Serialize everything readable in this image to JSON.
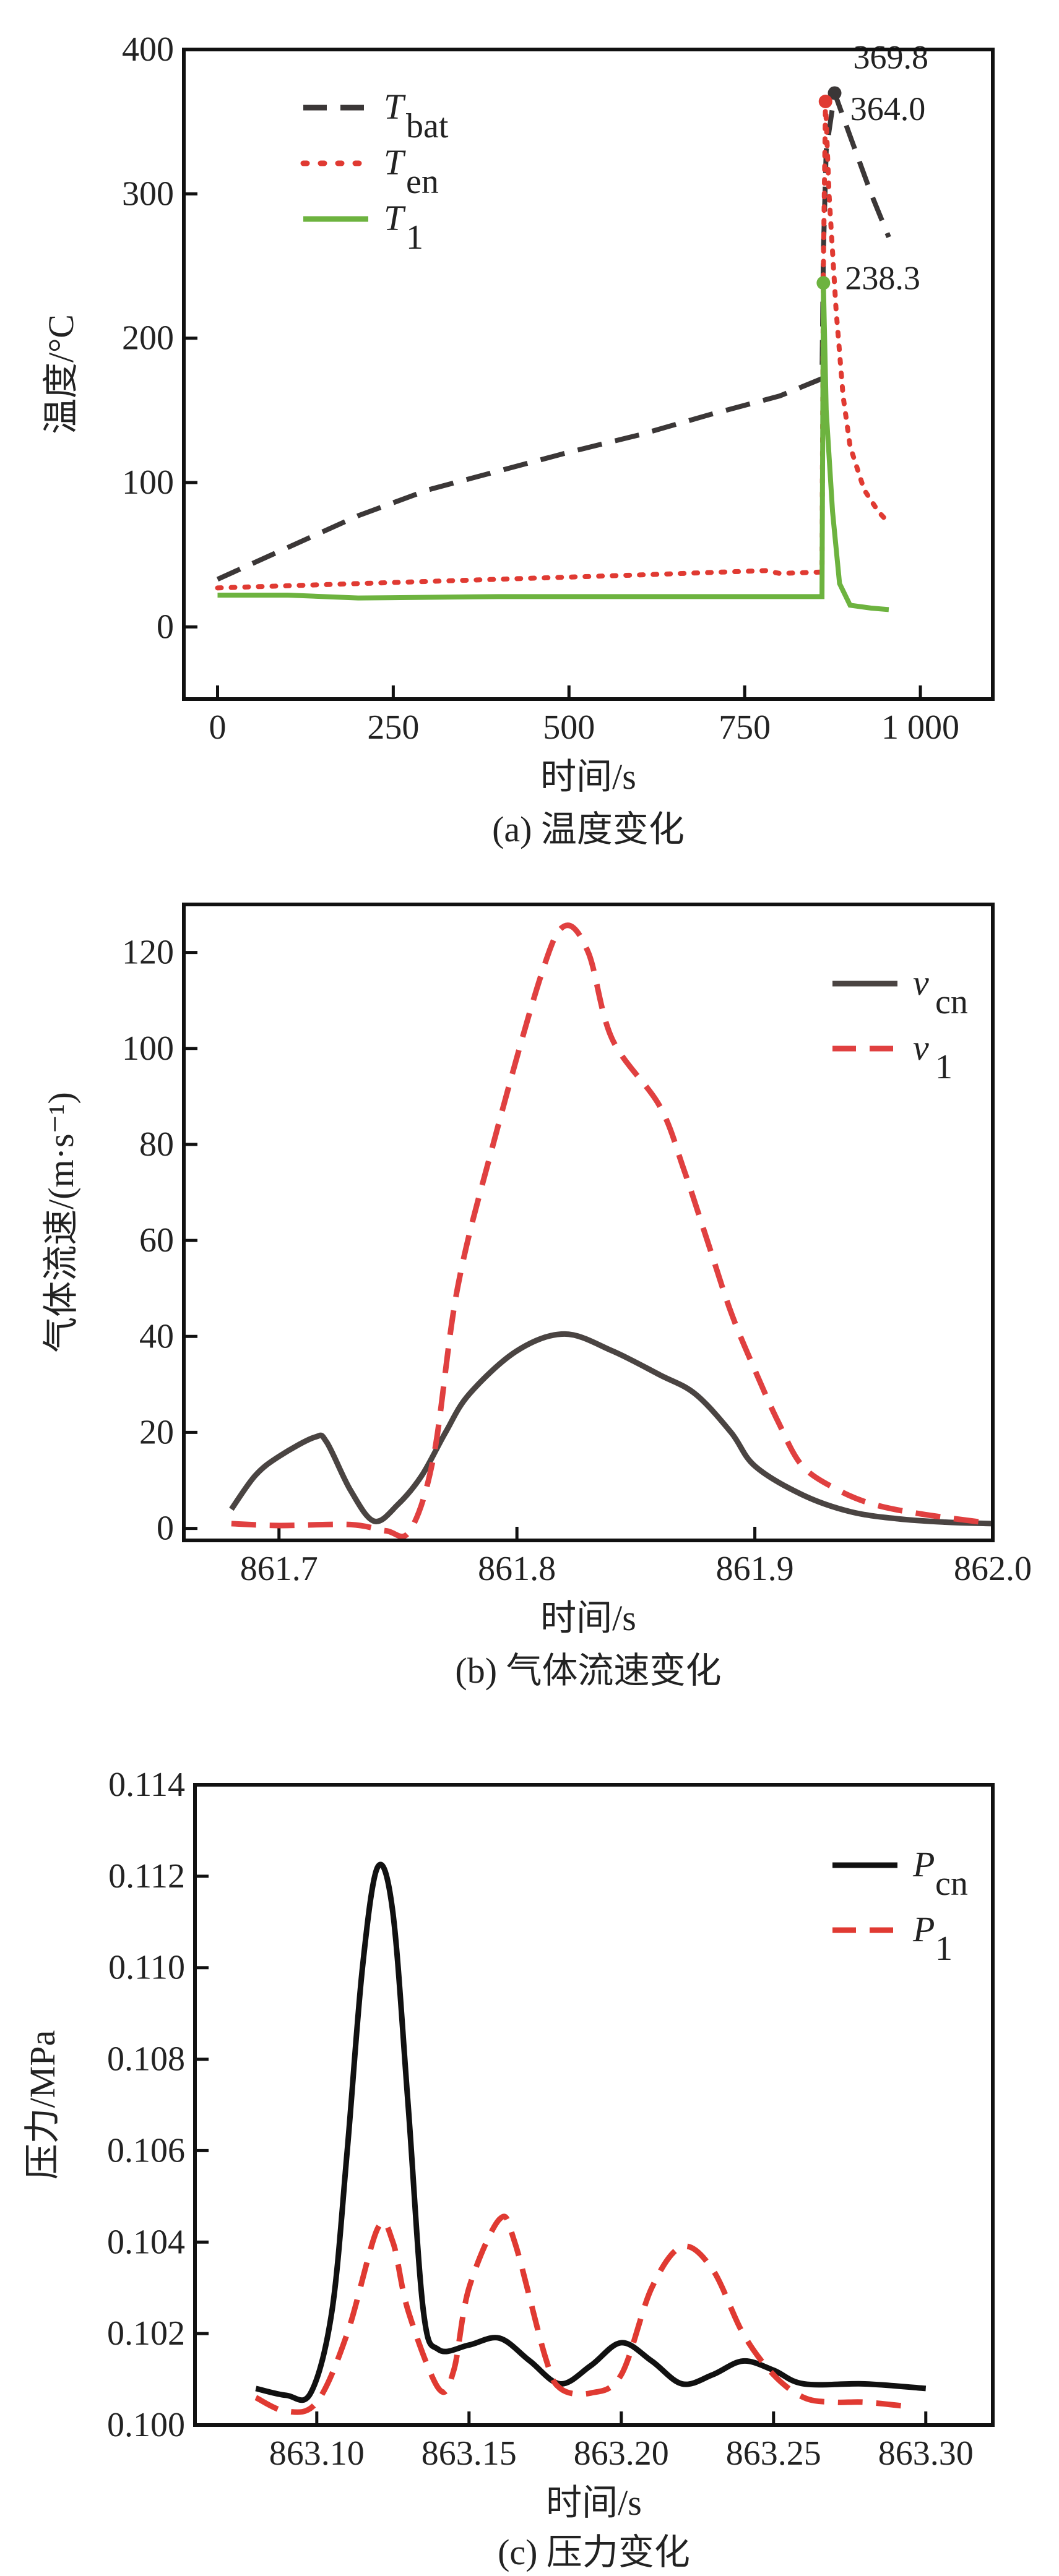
{
  "chart_data": [
    {
      "id": "a",
      "type": "line",
      "caption": "(a) 温度变化",
      "xlabel": "时间/s",
      "ylabel": "温度/°C",
      "xlim": [
        -48,
        1103
      ],
      "ylim": [
        -50,
        400
      ],
      "xticks": [
        0,
        250,
        500,
        750,
        1000
      ],
      "xtick_labels": [
        "0",
        "250",
        "500",
        "750",
        "1 000"
      ],
      "yticks": [
        0,
        100,
        200,
        300,
        400
      ],
      "ytick_labels": [
        "0",
        "100",
        "200",
        "300",
        "400"
      ],
      "legend_position": "top-left",
      "series": [
        {
          "name": "T",
          "sub": "bat",
          "color": "#3b3737",
          "style": "dashed",
          "points": [
            [
              0,
              33
            ],
            [
              100,
              55
            ],
            [
              200,
              77
            ],
            [
              300,
              95
            ],
            [
              400,
              108
            ],
            [
              500,
              121
            ],
            [
              600,
              133
            ],
            [
              700,
              147
            ],
            [
              800,
              160
            ],
            [
              860,
              172
            ],
            [
              862,
              260
            ],
            [
              866,
              330
            ],
            [
              878,
              369.8
            ],
            [
              900,
              340
            ],
            [
              930,
              300
            ],
            [
              955,
              270
            ]
          ]
        },
        {
          "name": "T",
          "sub": "en",
          "color": "#e03a32",
          "style": "dotted",
          "points": [
            [
              0,
              27
            ],
            [
              200,
              30
            ],
            [
              400,
              33
            ],
            [
              600,
              36
            ],
            [
              780,
              39
            ],
            [
              800,
              37
            ],
            [
              860,
              38
            ],
            [
              862,
              250
            ],
            [
              865,
              364
            ],
            [
              870,
              300
            ],
            [
              880,
              220
            ],
            [
              890,
              160
            ],
            [
              900,
              125
            ],
            [
              920,
              95
            ],
            [
              940,
              80
            ],
            [
              955,
              72
            ]
          ]
        },
        {
          "name": "T",
          "sub": "1",
          "color": "#6db33f",
          "style": "solid",
          "points": [
            [
              0,
              22
            ],
            [
              100,
              22
            ],
            [
              200,
              20
            ],
            [
              400,
              21
            ],
            [
              600,
              21
            ],
            [
              860,
              21
            ],
            [
              862,
              238.3
            ],
            [
              866,
              150
            ],
            [
              875,
              80
            ],
            [
              885,
              30
            ],
            [
              900,
              15
            ],
            [
              930,
              13
            ],
            [
              955,
              12
            ]
          ]
        }
      ],
      "annotations": [
        {
          "text": "369.8",
          "x": 878,
          "y": 369.8,
          "color": "#3b3737"
        },
        {
          "text": "364.0",
          "x": 865,
          "y": 364.0,
          "color": "#e03a32"
        },
        {
          "text": "238.3",
          "x": 862,
          "y": 238.3,
          "color": "#6db33f"
        }
      ]
    },
    {
      "id": "b",
      "type": "line",
      "caption": "(b) 气体流速变化",
      "xlabel": "时间/s",
      "ylabel": "气体流速/(m·s⁻¹)",
      "xlim": [
        861.66,
        862.0
      ],
      "ylim": [
        -2.5,
        130
      ],
      "xticks": [
        861.7,
        861.8,
        861.9,
        862.0
      ],
      "xtick_labels": [
        "861.7",
        "861.8",
        "861.9",
        "862.0"
      ],
      "yticks": [
        0,
        20,
        40,
        60,
        80,
        100,
        120
      ],
      "ytick_labels": [
        "0",
        "20",
        "40",
        "60",
        "80",
        "100",
        "120"
      ],
      "legend_position": "top-right",
      "series": [
        {
          "name": "v",
          "sub": "cn",
          "color": "#4a4442",
          "style": "solid",
          "points": [
            [
              861.68,
              4
            ],
            [
              861.69,
              11
            ],
            [
              861.7,
              15
            ],
            [
              861.715,
              19
            ],
            [
              861.72,
              18
            ],
            [
              861.73,
              8
            ],
            [
              861.74,
              1.5
            ],
            [
              861.75,
              5
            ],
            [
              861.76,
              11
            ],
            [
              861.77,
              20
            ],
            [
              861.78,
              28
            ],
            [
              861.8,
              37
            ],
            [
              861.82,
              40.5
            ],
            [
              861.84,
              37
            ],
            [
              861.86,
              32
            ],
            [
              861.875,
              28
            ],
            [
              861.89,
              20
            ],
            [
              861.9,
              13
            ],
            [
              861.92,
              7
            ],
            [
              861.94,
              3.5
            ],
            [
              861.96,
              2
            ],
            [
              861.98,
              1.3
            ],
            [
              862.0,
              1
            ]
          ]
        },
        {
          "name": "v",
          "sub": "1",
          "color": "#e04040",
          "style": "dashed",
          "points": [
            [
              861.68,
              1
            ],
            [
              861.7,
              0.6
            ],
            [
              861.73,
              0.8
            ],
            [
              861.745,
              -0.5
            ],
            [
              861.755,
              -0.5
            ],
            [
              861.765,
              15
            ],
            [
              861.775,
              50
            ],
            [
              861.79,
              80
            ],
            [
              861.81,
              115
            ],
            [
              861.82,
              125.5
            ],
            [
              861.83,
              120
            ],
            [
              861.84,
              102
            ],
            [
              861.86,
              88
            ],
            [
              861.87,
              75
            ],
            [
              861.88,
              60
            ],
            [
              861.89,
              45
            ],
            [
              861.9,
              33
            ],
            [
              861.91,
              22
            ],
            [
              861.92,
              13
            ],
            [
              861.935,
              8
            ],
            [
              861.95,
              5
            ],
            [
              861.97,
              3
            ],
            [
              862.0,
              1
            ]
          ]
        }
      ]
    },
    {
      "id": "c",
      "type": "line",
      "caption": "(c) 压力变化",
      "xlabel": "时间/s",
      "ylabel": "压力/MPa",
      "xlim": [
        863.06,
        863.322
      ],
      "ylim": [
        0.1,
        0.114
      ],
      "xticks": [
        863.1,
        863.15,
        863.2,
        863.25,
        863.3
      ],
      "xtick_labels": [
        "863.10",
        "863.15",
        "863.20",
        "863.25",
        "863.30"
      ],
      "yticks": [
        0.1,
        0.102,
        0.104,
        0.106,
        0.108,
        0.11,
        0.112,
        0.114
      ],
      "ytick_labels": [
        "0.100",
        "0.102",
        "0.104",
        "0.106",
        "0.108",
        "0.110",
        "0.112",
        "0.114"
      ],
      "legend_position": "top-right",
      "series": [
        {
          "name": "P",
          "sub": "cn",
          "color": "#111111",
          "style": "solid",
          "points": [
            [
              863.08,
              0.1008
            ],
            [
              863.09,
              0.10065
            ],
            [
              863.098,
              0.1007
            ],
            [
              863.105,
              0.1025
            ],
            [
              863.11,
              0.106
            ],
            [
              863.115,
              0.11
            ],
            [
              863.12,
              0.1122
            ],
            [
              863.125,
              0.1112
            ],
            [
              863.13,
              0.107
            ],
            [
              863.135,
              0.1025
            ],
            [
              863.14,
              0.10165
            ],
            [
              863.15,
              0.10175
            ],
            [
              863.16,
              0.1019
            ],
            [
              863.17,
              0.1014
            ],
            [
              863.18,
              0.1009
            ],
            [
              863.19,
              0.1013
            ],
            [
              863.2,
              0.1018
            ],
            [
              863.21,
              0.1014
            ],
            [
              863.22,
              0.1009
            ],
            [
              863.23,
              0.1011
            ],
            [
              863.24,
              0.1014
            ],
            [
              863.25,
              0.1012
            ],
            [
              863.26,
              0.1009
            ],
            [
              863.28,
              0.1009
            ],
            [
              863.3,
              0.1008
            ]
          ]
        },
        {
          "name": "P",
          "sub": "1",
          "color": "#e03a32",
          "style": "dashed",
          "points": [
            [
              863.08,
              0.1006
            ],
            [
              863.09,
              0.1003
            ],
            [
              863.1,
              0.1005
            ],
            [
              863.11,
              0.102
            ],
            [
              863.12,
              0.1043
            ],
            [
              863.125,
              0.104
            ],
            [
              863.13,
              0.1025
            ],
            [
              863.14,
              0.1008
            ],
            [
              863.145,
              0.1012
            ],
            [
              863.15,
              0.103
            ],
            [
              863.16,
              0.1045
            ],
            [
              863.165,
              0.104
            ],
            [
              863.175,
              0.1015
            ],
            [
              863.18,
              0.1008
            ],
            [
              863.19,
              0.1007
            ],
            [
              863.2,
              0.1011
            ],
            [
              863.21,
              0.103
            ],
            [
              863.22,
              0.1039
            ],
            [
              863.23,
              0.1034
            ],
            [
              863.24,
              0.102
            ],
            [
              863.25,
              0.1011
            ],
            [
              863.26,
              0.1006
            ],
            [
              863.27,
              0.1005
            ],
            [
              863.28,
              0.1005
            ],
            [
              863.295,
              0.1004
            ]
          ]
        }
      ]
    }
  ]
}
